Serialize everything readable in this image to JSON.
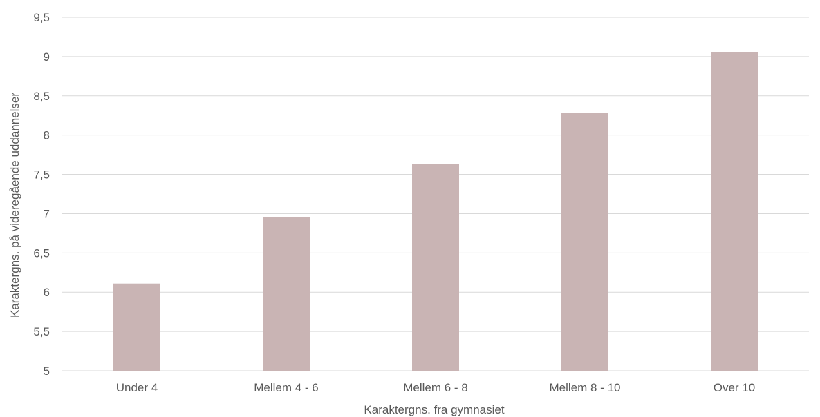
{
  "chart_data": {
    "type": "bar",
    "categories": [
      "Under 4",
      "Mellem 4 - 6",
      "Mellem 6 - 8",
      "Mellem 8 - 10",
      "Over 10"
    ],
    "values": [
      6.11,
      6.96,
      7.63,
      8.28,
      9.06
    ],
    "y_ticks": [
      "5",
      "5,5",
      "6",
      "6,5",
      "7",
      "7,5",
      "8",
      "8,5",
      "9",
      "9,5"
    ],
    "title": "",
    "xlabel": "Karaktergns. fra gymnasiet",
    "ylabel": "Karaktergns. på videregående uddannelser",
    "ylim": [
      5,
      9.5
    ],
    "grid": true,
    "legend": "none",
    "bar_color": "#c9b4b4",
    "gridline_color": "#d9d9d9",
    "text_color": "#595959"
  }
}
